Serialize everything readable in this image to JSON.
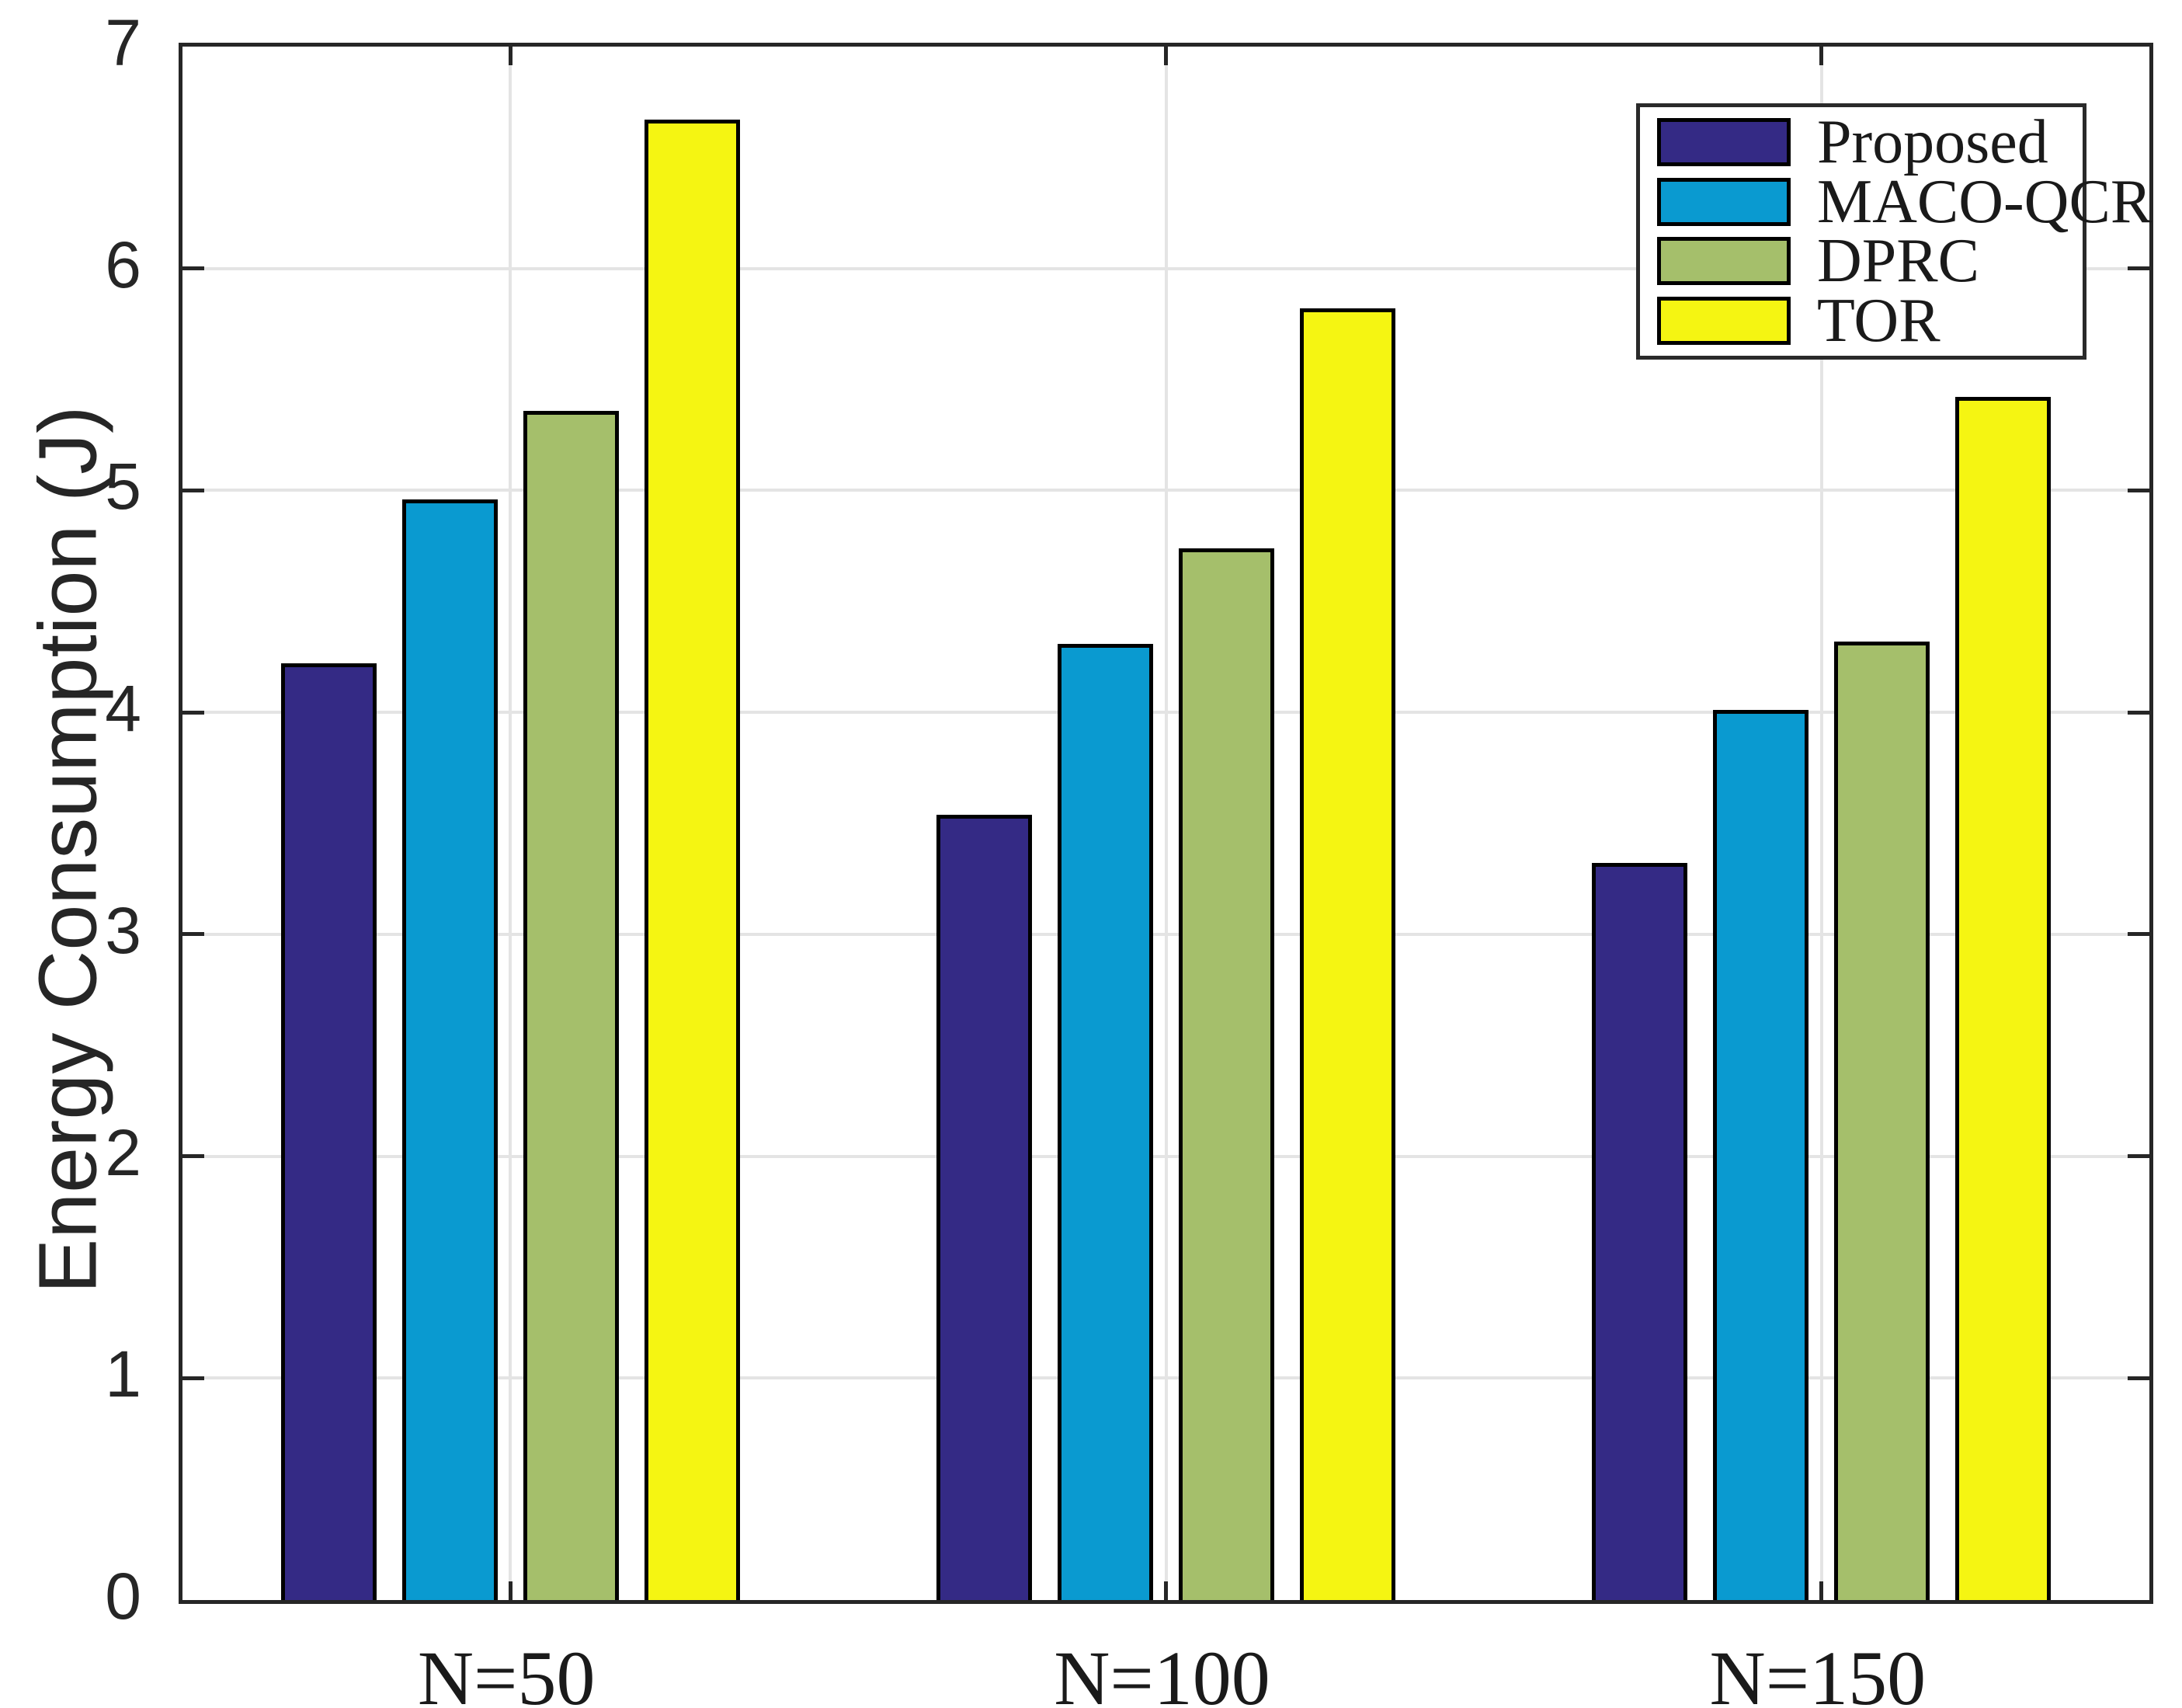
{
  "figure": {
    "background": "#ffffff",
    "axis_color": "#262626",
    "grid_color": "#e4e4e4",
    "bar_edge_color": "#000000"
  },
  "axes": {
    "ylabel": "Energy Consumption (J)",
    "yticks": [
      "0",
      "1",
      "2",
      "3",
      "4",
      "5",
      "6",
      "7"
    ],
    "xticklabels": [
      "N=50",
      "N=100",
      "N=150"
    ]
  },
  "legend": {
    "position": "top-right",
    "entries": [
      {
        "label": "Proposed",
        "color": "#342a85"
      },
      {
        "label": "MACO-QCR",
        "color": "#0a9ad0"
      },
      {
        "label": "DPRC",
        "color": "#a5bf6b"
      },
      {
        "label": "TOR",
        "color": "#f5f512"
      }
    ]
  },
  "chart_data": {
    "type": "bar",
    "title": "",
    "xlabel": "",
    "ylabel": "Energy Consumption (J)",
    "categories": [
      "N=50",
      "N=100",
      "N=150"
    ],
    "series": [
      {
        "name": "Proposed",
        "color": "#342a85",
        "values": [
          4.22,
          3.54,
          3.32
        ]
      },
      {
        "name": "MACO-QCR",
        "color": "#0a9ad0",
        "values": [
          4.96,
          4.31,
          4.01
        ]
      },
      {
        "name": "DPRC",
        "color": "#a5bf6b",
        "values": [
          5.36,
          4.74,
          4.32
        ]
      },
      {
        "name": "TOR",
        "color": "#f5f512",
        "values": [
          6.67,
          5.82,
          5.42
        ]
      }
    ],
    "ylim": [
      0,
      7
    ],
    "grid": true,
    "grid_vertical_at_group_centers": true,
    "legend_position": "top-right"
  }
}
